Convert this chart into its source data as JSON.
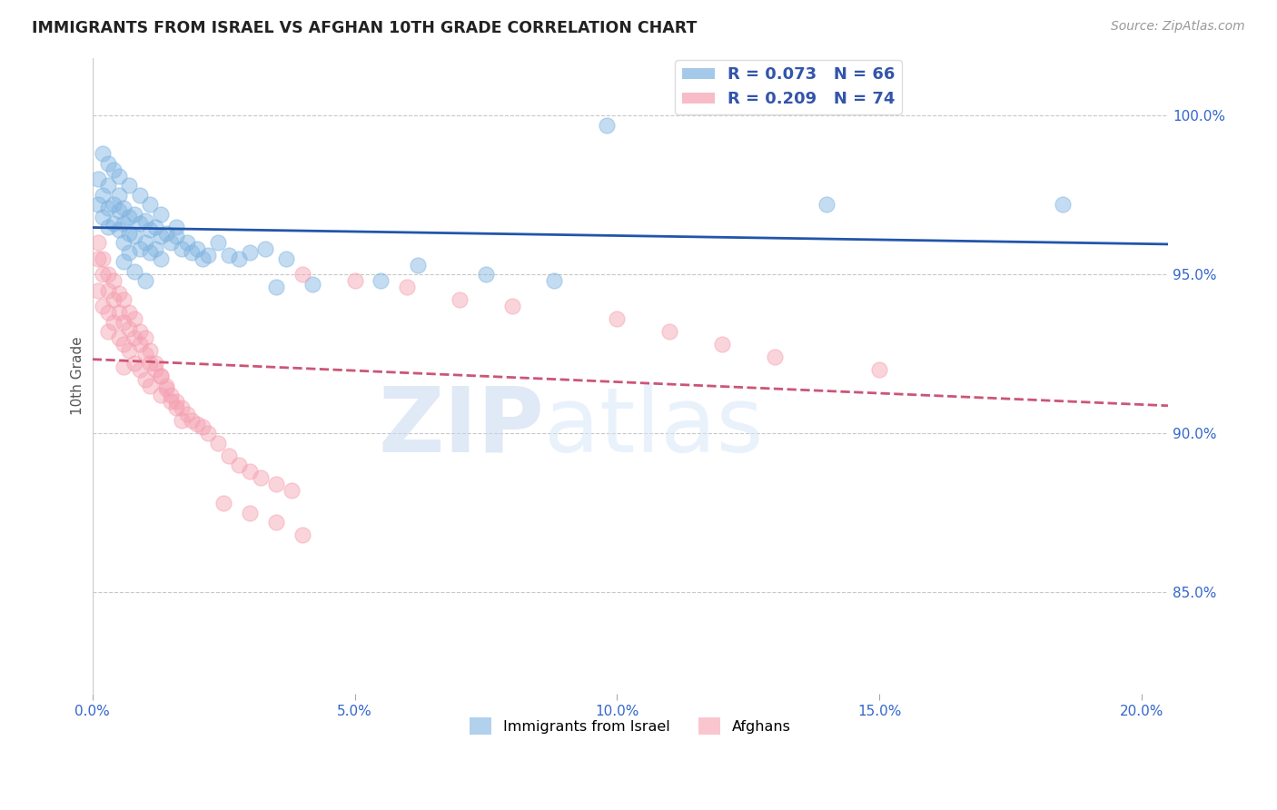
{
  "title": "IMMIGRANTS FROM ISRAEL VS AFGHAN 10TH GRADE CORRELATION CHART",
  "source": "Source: ZipAtlas.com",
  "ylabel": "10th Grade",
  "watermark_zip": "ZIP",
  "watermark_atlas": "atlas",
  "legend_blue_label": "R = 0.073   N = 66",
  "legend_pink_label": "R = 0.209   N = 74",
  "legend_bottom_blue": "Immigrants from Israel",
  "legend_bottom_pink": "Afghans",
  "blue_color": "#7EB3E0",
  "pink_color": "#F5A0B0",
  "trend_blue_color": "#2255AA",
  "trend_pink_color": "#CC5577",
  "ytick_labels": [
    "85.0%",
    "90.0%",
    "95.0%",
    "100.0%"
  ],
  "ytick_values": [
    0.85,
    0.9,
    0.95,
    1.0
  ],
  "xtick_labels": [
    "0.0%",
    "5.0%",
    "10.0%",
    "15.0%",
    "20.0%"
  ],
  "xtick_values": [
    0.0,
    0.05,
    0.1,
    0.15,
    0.2
  ],
  "xlim": [
    0.0,
    0.205
  ],
  "ylim": [
    0.818,
    1.018
  ],
  "blue_x": [
    0.001,
    0.001,
    0.002,
    0.002,
    0.003,
    0.003,
    0.003,
    0.004,
    0.004,
    0.005,
    0.005,
    0.005,
    0.006,
    0.006,
    0.006,
    0.007,
    0.007,
    0.007,
    0.008,
    0.008,
    0.009,
    0.009,
    0.01,
    0.01,
    0.011,
    0.011,
    0.012,
    0.012,
    0.013,
    0.013,
    0.014,
    0.015,
    0.016,
    0.017,
    0.018,
    0.019,
    0.02,
    0.021,
    0.022,
    0.024,
    0.026,
    0.028,
    0.03,
    0.033,
    0.037,
    0.002,
    0.003,
    0.004,
    0.005,
    0.007,
    0.009,
    0.011,
    0.013,
    0.016,
    0.006,
    0.008,
    0.01,
    0.098,
    0.14,
    0.185,
    0.062,
    0.075,
    0.088,
    0.055,
    0.042,
    0.035
  ],
  "blue_y": [
    0.98,
    0.972,
    0.975,
    0.968,
    0.978,
    0.971,
    0.965,
    0.972,
    0.966,
    0.975,
    0.97,
    0.964,
    0.971,
    0.966,
    0.96,
    0.968,
    0.963,
    0.957,
    0.969,
    0.962,
    0.966,
    0.958,
    0.967,
    0.96,
    0.964,
    0.957,
    0.965,
    0.958,
    0.962,
    0.955,
    0.963,
    0.96,
    0.962,
    0.958,
    0.96,
    0.957,
    0.958,
    0.955,
    0.956,
    0.96,
    0.956,
    0.955,
    0.957,
    0.958,
    0.955,
    0.988,
    0.985,
    0.983,
    0.981,
    0.978,
    0.975,
    0.972,
    0.969,
    0.965,
    0.954,
    0.951,
    0.948,
    0.997,
    0.972,
    0.972,
    0.953,
    0.95,
    0.948,
    0.948,
    0.947,
    0.946
  ],
  "pink_x": [
    0.001,
    0.001,
    0.002,
    0.002,
    0.003,
    0.003,
    0.003,
    0.004,
    0.004,
    0.005,
    0.005,
    0.006,
    0.006,
    0.006,
    0.007,
    0.007,
    0.008,
    0.008,
    0.009,
    0.009,
    0.01,
    0.01,
    0.011,
    0.011,
    0.012,
    0.013,
    0.013,
    0.014,
    0.015,
    0.016,
    0.017,
    0.018,
    0.019,
    0.02,
    0.021,
    0.022,
    0.024,
    0.026,
    0.028,
    0.03,
    0.032,
    0.035,
    0.038,
    0.001,
    0.002,
    0.003,
    0.004,
    0.005,
    0.006,
    0.007,
    0.008,
    0.009,
    0.01,
    0.011,
    0.012,
    0.013,
    0.014,
    0.015,
    0.016,
    0.017,
    0.04,
    0.05,
    0.06,
    0.07,
    0.08,
    0.1,
    0.11,
    0.12,
    0.13,
    0.15,
    0.025,
    0.03,
    0.035,
    0.04
  ],
  "pink_y": [
    0.955,
    0.945,
    0.95,
    0.94,
    0.945,
    0.938,
    0.932,
    0.942,
    0.935,
    0.938,
    0.93,
    0.935,
    0.928,
    0.921,
    0.933,
    0.926,
    0.93,
    0.922,
    0.928,
    0.92,
    0.925,
    0.917,
    0.922,
    0.915,
    0.92,
    0.918,
    0.912,
    0.915,
    0.912,
    0.91,
    0.908,
    0.906,
    0.904,
    0.903,
    0.902,
    0.9,
    0.897,
    0.893,
    0.89,
    0.888,
    0.886,
    0.884,
    0.882,
    0.96,
    0.955,
    0.95,
    0.948,
    0.944,
    0.942,
    0.938,
    0.936,
    0.932,
    0.93,
    0.926,
    0.922,
    0.918,
    0.914,
    0.91,
    0.908,
    0.904,
    0.95,
    0.948,
    0.946,
    0.942,
    0.94,
    0.936,
    0.932,
    0.928,
    0.924,
    0.92,
    0.878,
    0.875,
    0.872,
    0.868
  ]
}
